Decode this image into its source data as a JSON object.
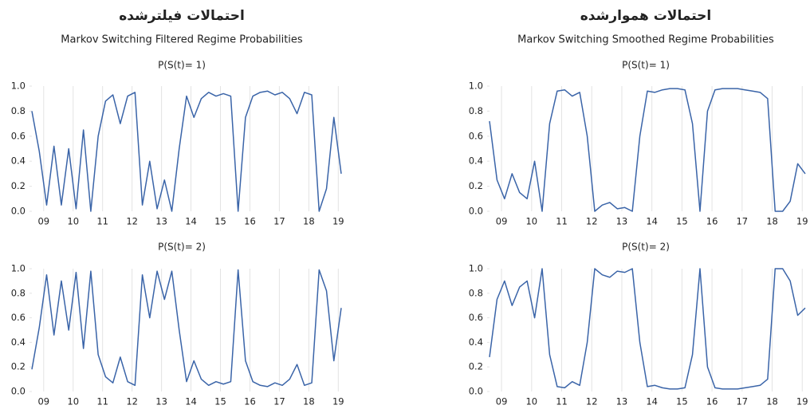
{
  "columns": [
    {
      "heading": "احتمالات فیلترشده",
      "subtitle": "Markov Switching Filtered Regime Probabilities"
    },
    {
      "heading": "احتمالات هموارشده",
      "subtitle": "Markov Switching Smoothed Regime Probabilities"
    }
  ],
  "chart_data": [
    {
      "type": "line",
      "title": "P(S(t)= 1)",
      "x": [
        2008.6,
        2008.85,
        2009.1,
        2009.35,
        2009.6,
        2009.85,
        2010.1,
        2010.35,
        2010.6,
        2010.85,
        2011.1,
        2011.35,
        2011.6,
        2011.85,
        2012.1,
        2012.35,
        2012.6,
        2012.85,
        2013.1,
        2013.35,
        2013.6,
        2013.85,
        2014.1,
        2014.35,
        2014.6,
        2014.85,
        2015.1,
        2015.35,
        2015.6,
        2015.85,
        2016.1,
        2016.35,
        2016.6,
        2016.85,
        2017.1,
        2017.35,
        2017.6,
        2017.85,
        2018.1,
        2018.35,
        2018.6,
        2018.85,
        2019.1
      ],
      "values": [
        0.8,
        0.48,
        0.05,
        0.52,
        0.05,
        0.5,
        0.02,
        0.65,
        0.0,
        0.6,
        0.88,
        0.93,
        0.7,
        0.92,
        0.95,
        0.05,
        0.4,
        0.02,
        0.25,
        0.0,
        0.5,
        0.92,
        0.75,
        0.9,
        0.95,
        0.92,
        0.94,
        0.92,
        0.0,
        0.75,
        0.92,
        0.95,
        0.96,
        0.93,
        0.95,
        0.9,
        0.78,
        0.95,
        0.93,
        0.0,
        0.18,
        0.75,
        0.3
      ],
      "color": "#3a64a8",
      "xlim": [
        2008.6,
        2019.1
      ],
      "xticks": [
        {
          "value": 2009,
          "label": "09"
        },
        {
          "value": 2010,
          "label": "10"
        },
        {
          "value": 2011,
          "label": "11"
        },
        {
          "value": 2012,
          "label": "12"
        },
        {
          "value": 2013,
          "label": "13"
        },
        {
          "value": 2014,
          "label": "14"
        },
        {
          "value": 2015,
          "label": "15"
        },
        {
          "value": 2016,
          "label": "16"
        },
        {
          "value": 2017,
          "label": "17"
        },
        {
          "value": 2018,
          "label": "18"
        },
        {
          "value": 2019,
          "label": "19"
        }
      ],
      "ylim": [
        0,
        1
      ],
      "yticks": [
        {
          "value": 0,
          "label": "0.0"
        },
        0.2,
        0.4,
        0.6,
        0.8,
        {
          "value": 1,
          "label": "1.0"
        }
      ],
      "grid": true
    },
    {
      "type": "line",
      "title": "P(S(t)= 2)",
      "x": [
        2008.6,
        2008.85,
        2009.1,
        2009.35,
        2009.6,
        2009.85,
        2010.1,
        2010.35,
        2010.6,
        2010.85,
        2011.1,
        2011.35,
        2011.6,
        2011.85,
        2012.1,
        2012.35,
        2012.6,
        2012.85,
        2013.1,
        2013.35,
        2013.6,
        2013.85,
        2014.1,
        2014.35,
        2014.6,
        2014.85,
        2015.1,
        2015.35,
        2015.6,
        2015.85,
        2016.1,
        2016.35,
        2016.6,
        2016.85,
        2017.1,
        2017.35,
        2017.6,
        2017.85,
        2018.1,
        2018.35,
        2018.6,
        2018.85,
        2019.1
      ],
      "values": [
        0.18,
        0.52,
        0.95,
        0.46,
        0.9,
        0.5,
        0.97,
        0.35,
        0.98,
        0.3,
        0.12,
        0.07,
        0.28,
        0.08,
        0.05,
        0.95,
        0.6,
        0.98,
        0.75,
        0.98,
        0.5,
        0.08,
        0.25,
        0.1,
        0.05,
        0.08,
        0.06,
        0.08,
        0.99,
        0.25,
        0.08,
        0.05,
        0.04,
        0.07,
        0.05,
        0.1,
        0.22,
        0.05,
        0.07,
        0.99,
        0.82,
        0.25,
        0.68
      ],
      "color": "#3a64a8",
      "xlim": [
        2008.6,
        2019.1
      ],
      "xticks": [
        {
          "value": 2009,
          "label": "09"
        },
        {
          "value": 2010,
          "label": "10"
        },
        {
          "value": 2011,
          "label": "11"
        },
        {
          "value": 2012,
          "label": "12"
        },
        {
          "value": 2013,
          "label": "13"
        },
        {
          "value": 2014,
          "label": "14"
        },
        {
          "value": 2015,
          "label": "15"
        },
        {
          "value": 2016,
          "label": "16"
        },
        {
          "value": 2017,
          "label": "17"
        },
        {
          "value": 2018,
          "label": "18"
        },
        {
          "value": 2019,
          "label": "19"
        }
      ],
      "ylim": [
        0,
        1
      ],
      "yticks": [
        {
          "value": 0,
          "label": "0.0"
        },
        0.2,
        0.4,
        0.6,
        0.8,
        {
          "value": 1,
          "label": "1.0"
        }
      ],
      "grid": true
    },
    {
      "type": "line",
      "title": "P(S(t)= 1)",
      "x": [
        2008.6,
        2008.85,
        2009.1,
        2009.35,
        2009.6,
        2009.85,
        2010.1,
        2010.35,
        2010.6,
        2010.85,
        2011.1,
        2011.35,
        2011.6,
        2011.85,
        2012.1,
        2012.35,
        2012.6,
        2012.85,
        2013.1,
        2013.35,
        2013.6,
        2013.85,
        2014.1,
        2014.35,
        2014.6,
        2014.85,
        2015.1,
        2015.35,
        2015.6,
        2015.85,
        2016.1,
        2016.35,
        2016.6,
        2016.85,
        2017.1,
        2017.35,
        2017.6,
        2017.85,
        2018.1,
        2018.35,
        2018.6,
        2018.85,
        2019.1
      ],
      "values": [
        0.72,
        0.25,
        0.1,
        0.3,
        0.15,
        0.1,
        0.4,
        0.0,
        0.7,
        0.96,
        0.97,
        0.92,
        0.95,
        0.6,
        0.0,
        0.05,
        0.07,
        0.02,
        0.03,
        0.0,
        0.6,
        0.96,
        0.95,
        0.97,
        0.98,
        0.98,
        0.97,
        0.7,
        0.0,
        0.8,
        0.97,
        0.98,
        0.98,
        0.98,
        0.97,
        0.96,
        0.95,
        0.9,
        0.0,
        0.0,
        0.08,
        0.38,
        0.3
      ],
      "color": "#3a64a8",
      "xlim": [
        2008.6,
        2019.1
      ],
      "xticks": [
        {
          "value": 2009,
          "label": "09"
        },
        {
          "value": 2010,
          "label": "10"
        },
        {
          "value": 2011,
          "label": "11"
        },
        {
          "value": 2012,
          "label": "12"
        },
        {
          "value": 2013,
          "label": "13"
        },
        {
          "value": 2014,
          "label": "14"
        },
        {
          "value": 2015,
          "label": "15"
        },
        {
          "value": 2016,
          "label": "16"
        },
        {
          "value": 2017,
          "label": "17"
        },
        {
          "value": 2018,
          "label": "18"
        },
        {
          "value": 2019,
          "label": "19"
        }
      ],
      "ylim": [
        0,
        1
      ],
      "yticks": [
        {
          "value": 0,
          "label": "0.0"
        },
        0.2,
        0.4,
        0.6,
        0.8,
        {
          "value": 1,
          "label": "1.0"
        }
      ],
      "grid": true
    },
    {
      "type": "line",
      "title": "P(S(t)= 2)",
      "x": [
        2008.6,
        2008.85,
        2009.1,
        2009.35,
        2009.6,
        2009.85,
        2010.1,
        2010.35,
        2010.6,
        2010.85,
        2011.1,
        2011.35,
        2011.6,
        2011.85,
        2012.1,
        2012.35,
        2012.6,
        2012.85,
        2013.1,
        2013.35,
        2013.6,
        2013.85,
        2014.1,
        2014.35,
        2014.6,
        2014.85,
        2015.1,
        2015.35,
        2015.6,
        2015.85,
        2016.1,
        2016.35,
        2016.6,
        2016.85,
        2017.1,
        2017.35,
        2017.6,
        2017.85,
        2018.1,
        2018.35,
        2018.6,
        2018.85,
        2019.1
      ],
      "values": [
        0.28,
        0.75,
        0.9,
        0.7,
        0.85,
        0.9,
        0.6,
        1.0,
        0.3,
        0.04,
        0.03,
        0.08,
        0.05,
        0.4,
        1.0,
        0.95,
        0.93,
        0.98,
        0.97,
        1.0,
        0.4,
        0.04,
        0.05,
        0.03,
        0.02,
        0.02,
        0.03,
        0.3,
        1.0,
        0.2,
        0.03,
        0.02,
        0.02,
        0.02,
        0.03,
        0.04,
        0.05,
        0.1,
        1.0,
        1.0,
        0.9,
        0.62,
        0.68
      ],
      "color": "#3a64a8",
      "xlim": [
        2008.6,
        2019.1
      ],
      "xticks": [
        {
          "value": 2009,
          "label": "09"
        },
        {
          "value": 2010,
          "label": "10"
        },
        {
          "value": 2011,
          "label": "11"
        },
        {
          "value": 2012,
          "label": "12"
        },
        {
          "value": 2013,
          "label": "13"
        },
        {
          "value": 2014,
          "label": "14"
        },
        {
          "value": 2015,
          "label": "15"
        },
        {
          "value": 2016,
          "label": "16"
        },
        {
          "value": 2017,
          "label": "17"
        },
        {
          "value": 2018,
          "label": "18"
        },
        {
          "value": 2019,
          "label": "19"
        }
      ],
      "ylim": [
        0,
        1
      ],
      "yticks": [
        {
          "value": 0,
          "label": "0.0"
        },
        0.2,
        0.4,
        0.6,
        0.8,
        {
          "value": 1,
          "label": "1.0"
        }
      ],
      "grid": true
    }
  ]
}
